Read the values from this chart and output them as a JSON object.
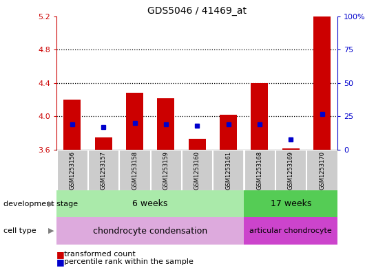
{
  "title": "GDS5046 / 41469_at",
  "samples": [
    "GSM1253156",
    "GSM1253157",
    "GSM1253158",
    "GSM1253159",
    "GSM1253160",
    "GSM1253161",
    "GSM1253168",
    "GSM1253169",
    "GSM1253170"
  ],
  "transformed_count": [
    4.2,
    3.75,
    4.28,
    4.22,
    3.73,
    4.02,
    4.4,
    3.62,
    5.2
  ],
  "percentile_rank": [
    19,
    17,
    20,
    19,
    18,
    19,
    19,
    8,
    27
  ],
  "ymin": 3.6,
  "ymax": 5.2,
  "y_ticks": [
    3.6,
    4.0,
    4.4,
    4.8,
    5.2
  ],
  "y_right_ticks": [
    0,
    25,
    50,
    75,
    100
  ],
  "y_right_labels": [
    "0",
    "25",
    "50",
    "75",
    "100%"
  ],
  "bar_color": "#cc0000",
  "blue_color": "#0000cc",
  "bar_width": 0.55,
  "dev_stage_6w_label": "6 weeks",
  "dev_stage_17w_label": "17 weeks",
  "cell_type_1_label": "chondrocyte condensation",
  "cell_type_2_label": "articular chondrocyte",
  "dev_stage_6w_color": "#aaeaaa",
  "dev_stage_17w_color": "#55cc55",
  "cell_type_1_color": "#ddaadd",
  "cell_type_2_color": "#cc44cc",
  "tick_color_left": "#cc0000",
  "tick_color_right": "#0000cc",
  "legend_label1": "transformed count",
  "legend_label2": "percentile rank within the sample",
  "group1_indices": [
    0,
    1,
    2,
    3,
    4,
    5
  ],
  "group2_indices": [
    6,
    7,
    8
  ],
  "label_left_dev": "development stage",
  "label_left_cell": "cell type"
}
